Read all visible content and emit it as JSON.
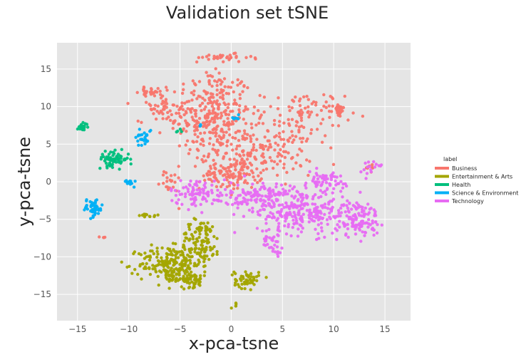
{
  "chart_data": {
    "type": "scatter",
    "title": "Validation set tSNE",
    "xlabel": "x-pca-tsne",
    "ylabel": "y-pca-tsne",
    "xlim": [
      -17,
      17.5
    ],
    "ylim": [
      -18.5,
      18.5
    ],
    "xticks": [
      -15,
      -10,
      -5,
      0,
      5,
      10,
      15
    ],
    "yticks": [
      15,
      10,
      5,
      0,
      -5,
      -10,
      -15
    ],
    "grid": true,
    "legend": {
      "title": "label",
      "position": "right",
      "entries": [
        {
          "name": "Business",
          "color": "#f8766d"
        },
        {
          "name": "Entertainment & Arts",
          "color": "#a3a500"
        },
        {
          "name": "Health",
          "color": "#00bf7d"
        },
        {
          "name": "Science & Environment",
          "color": "#00b0f6"
        },
        {
          "name": "Technology",
          "color": "#e76bf3"
        }
      ]
    },
    "series": [
      {
        "name": "Business",
        "color": "#f8766d",
        "clusters": [
          {
            "center": [
              -2,
              9
            ],
            "spread": [
              4,
              6
            ],
            "count": 320
          },
          {
            "center": [
              3,
              4
            ],
            "spread": [
              5,
              3
            ],
            "count": 160
          },
          {
            "center": [
              0,
              1
            ],
            "spread": [
              3,
              2
            ],
            "count": 120
          },
          {
            "center": [
              7,
              9
            ],
            "spread": [
              4,
              3
            ],
            "count": 90
          },
          {
            "center": [
              10.5,
              9.5
            ],
            "spread": [
              0.5,
              1
            ],
            "count": 25
          },
          {
            "center": [
              -7,
              10
            ],
            "spread": [
              2,
              2
            ],
            "count": 40
          },
          {
            "center": [
              -8,
              12
            ],
            "spread": [
              1,
              0.5
            ],
            "count": 20
          },
          {
            "center": [
              -1,
              16.5
            ],
            "spread": [
              3,
              0.5
            ],
            "count": 30
          },
          {
            "center": [
              -6,
              0
            ],
            "spread": [
              1,
              1.5
            ],
            "count": 20
          },
          {
            "center": [
              -12.5,
              -7.5
            ],
            "spread": [
              0.3,
              0.3
            ],
            "count": 4
          },
          {
            "center": [
              13.5,
              2
            ],
            "spread": [
              0.6,
              0.8
            ],
            "count": 8
          }
        ]
      },
      {
        "name": "Entertainment & Arts",
        "color": "#a3a500",
        "clusters": [
          {
            "center": [
              -6,
              -11
            ],
            "spread": [
              3,
              2.5
            ],
            "count": 200
          },
          {
            "center": [
              -3,
              -8
            ],
            "spread": [
              2,
              3
            ],
            "count": 120
          },
          {
            "center": [
              -4,
              -13
            ],
            "spread": [
              2,
              1
            ],
            "count": 60
          },
          {
            "center": [
              1.5,
              -13
            ],
            "spread": [
              1.2,
              1.2
            ],
            "count": 50
          },
          {
            "center": [
              0.5,
              -16.5
            ],
            "spread": [
              0.3,
              0.3
            ],
            "count": 5
          },
          {
            "center": [
              -8,
              -4.5
            ],
            "spread": [
              1,
              0.3
            ],
            "count": 12
          }
        ]
      },
      {
        "name": "Health",
        "color": "#00bf7d",
        "clusters": [
          {
            "center": [
              -11.5,
              3
            ],
            "spread": [
              1.5,
              1
            ],
            "count": 70
          },
          {
            "center": [
              -14.5,
              7.3
            ],
            "spread": [
              0.5,
              0.5
            ],
            "count": 25
          },
          {
            "center": [
              -5,
              6.5
            ],
            "spread": [
              0.3,
              0.4
            ],
            "count": 4
          }
        ]
      },
      {
        "name": "Science & Environment",
        "color": "#00b0f6",
        "clusters": [
          {
            "center": [
              -13.5,
              -3.5
            ],
            "spread": [
              1,
              1.2
            ],
            "count": 50
          },
          {
            "center": [
              -8.5,
              6
            ],
            "spread": [
              0.8,
              1.3
            ],
            "count": 25
          },
          {
            "center": [
              -10,
              0
            ],
            "spread": [
              0.5,
              0.5
            ],
            "count": 12
          },
          {
            "center": [
              0.5,
              8.5
            ],
            "spread": [
              0.3,
              0.5
            ],
            "count": 6
          },
          {
            "center": [
              -3,
              7.5
            ],
            "spread": [
              0.3,
              0.3
            ],
            "count": 3
          }
        ]
      },
      {
        "name": "Technology",
        "color": "#e76bf3",
        "clusters": [
          {
            "center": [
              7,
              -4
            ],
            "spread": [
              4.5,
              3
            ],
            "count": 260
          },
          {
            "center": [
              12.5,
              -5
            ],
            "spread": [
              2,
              2.5
            ],
            "count": 110
          },
          {
            "center": [
              3,
              -2
            ],
            "spread": [
              3,
              2
            ],
            "count": 120
          },
          {
            "center": [
              -3,
              -1.5
            ],
            "spread": [
              3,
              1.8
            ],
            "count": 100
          },
          {
            "center": [
              9,
              0
            ],
            "spread": [
              3,
              1.5
            ],
            "count": 60
          },
          {
            "center": [
              14,
              2
            ],
            "spread": [
              1,
              0.8
            ],
            "count": 15
          },
          {
            "center": [
              4,
              -8
            ],
            "spread": [
              1,
              1.5
            ],
            "count": 30
          }
        ]
      }
    ]
  }
}
